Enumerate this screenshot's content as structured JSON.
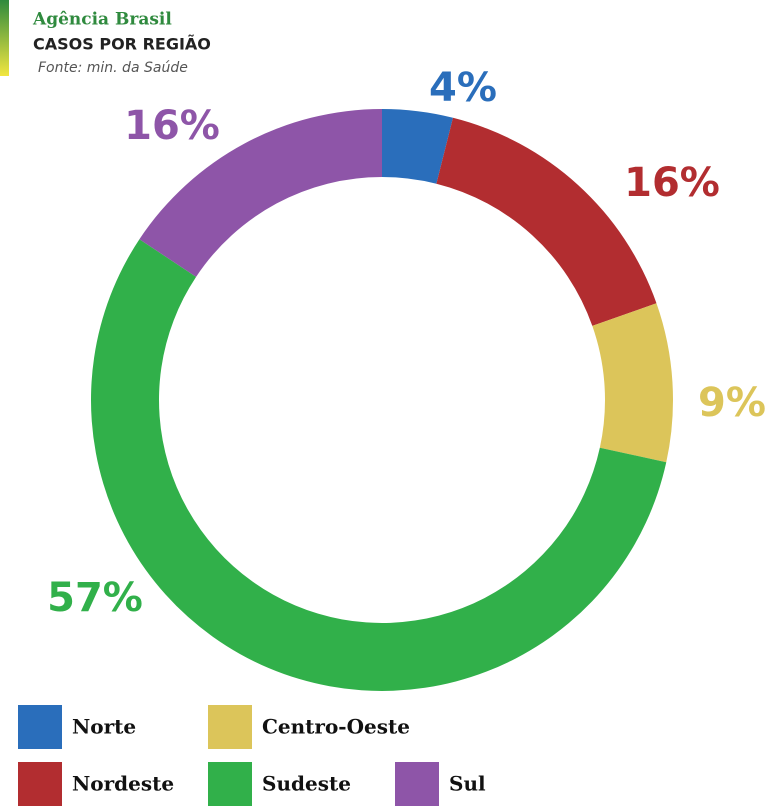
{
  "chart_data": {
    "type": "donut",
    "brand": "Agência Brasil",
    "title": "CASOS POR REGIÃO",
    "source": "Fonte: min. da Saúde",
    "categories": [
      "Norte",
      "Nordeste",
      "Centro-Oeste",
      "Sudeste",
      "Sul"
    ],
    "values": [
      4,
      16,
      9,
      57,
      16
    ],
    "value_labels": [
      "4%",
      "16%",
      "9%",
      "57%",
      "16%"
    ],
    "colors": [
      "#2a6ebb",
      "#b22d30",
      "#dcc55a",
      "#31b04a",
      "#8e55a8"
    ]
  }
}
